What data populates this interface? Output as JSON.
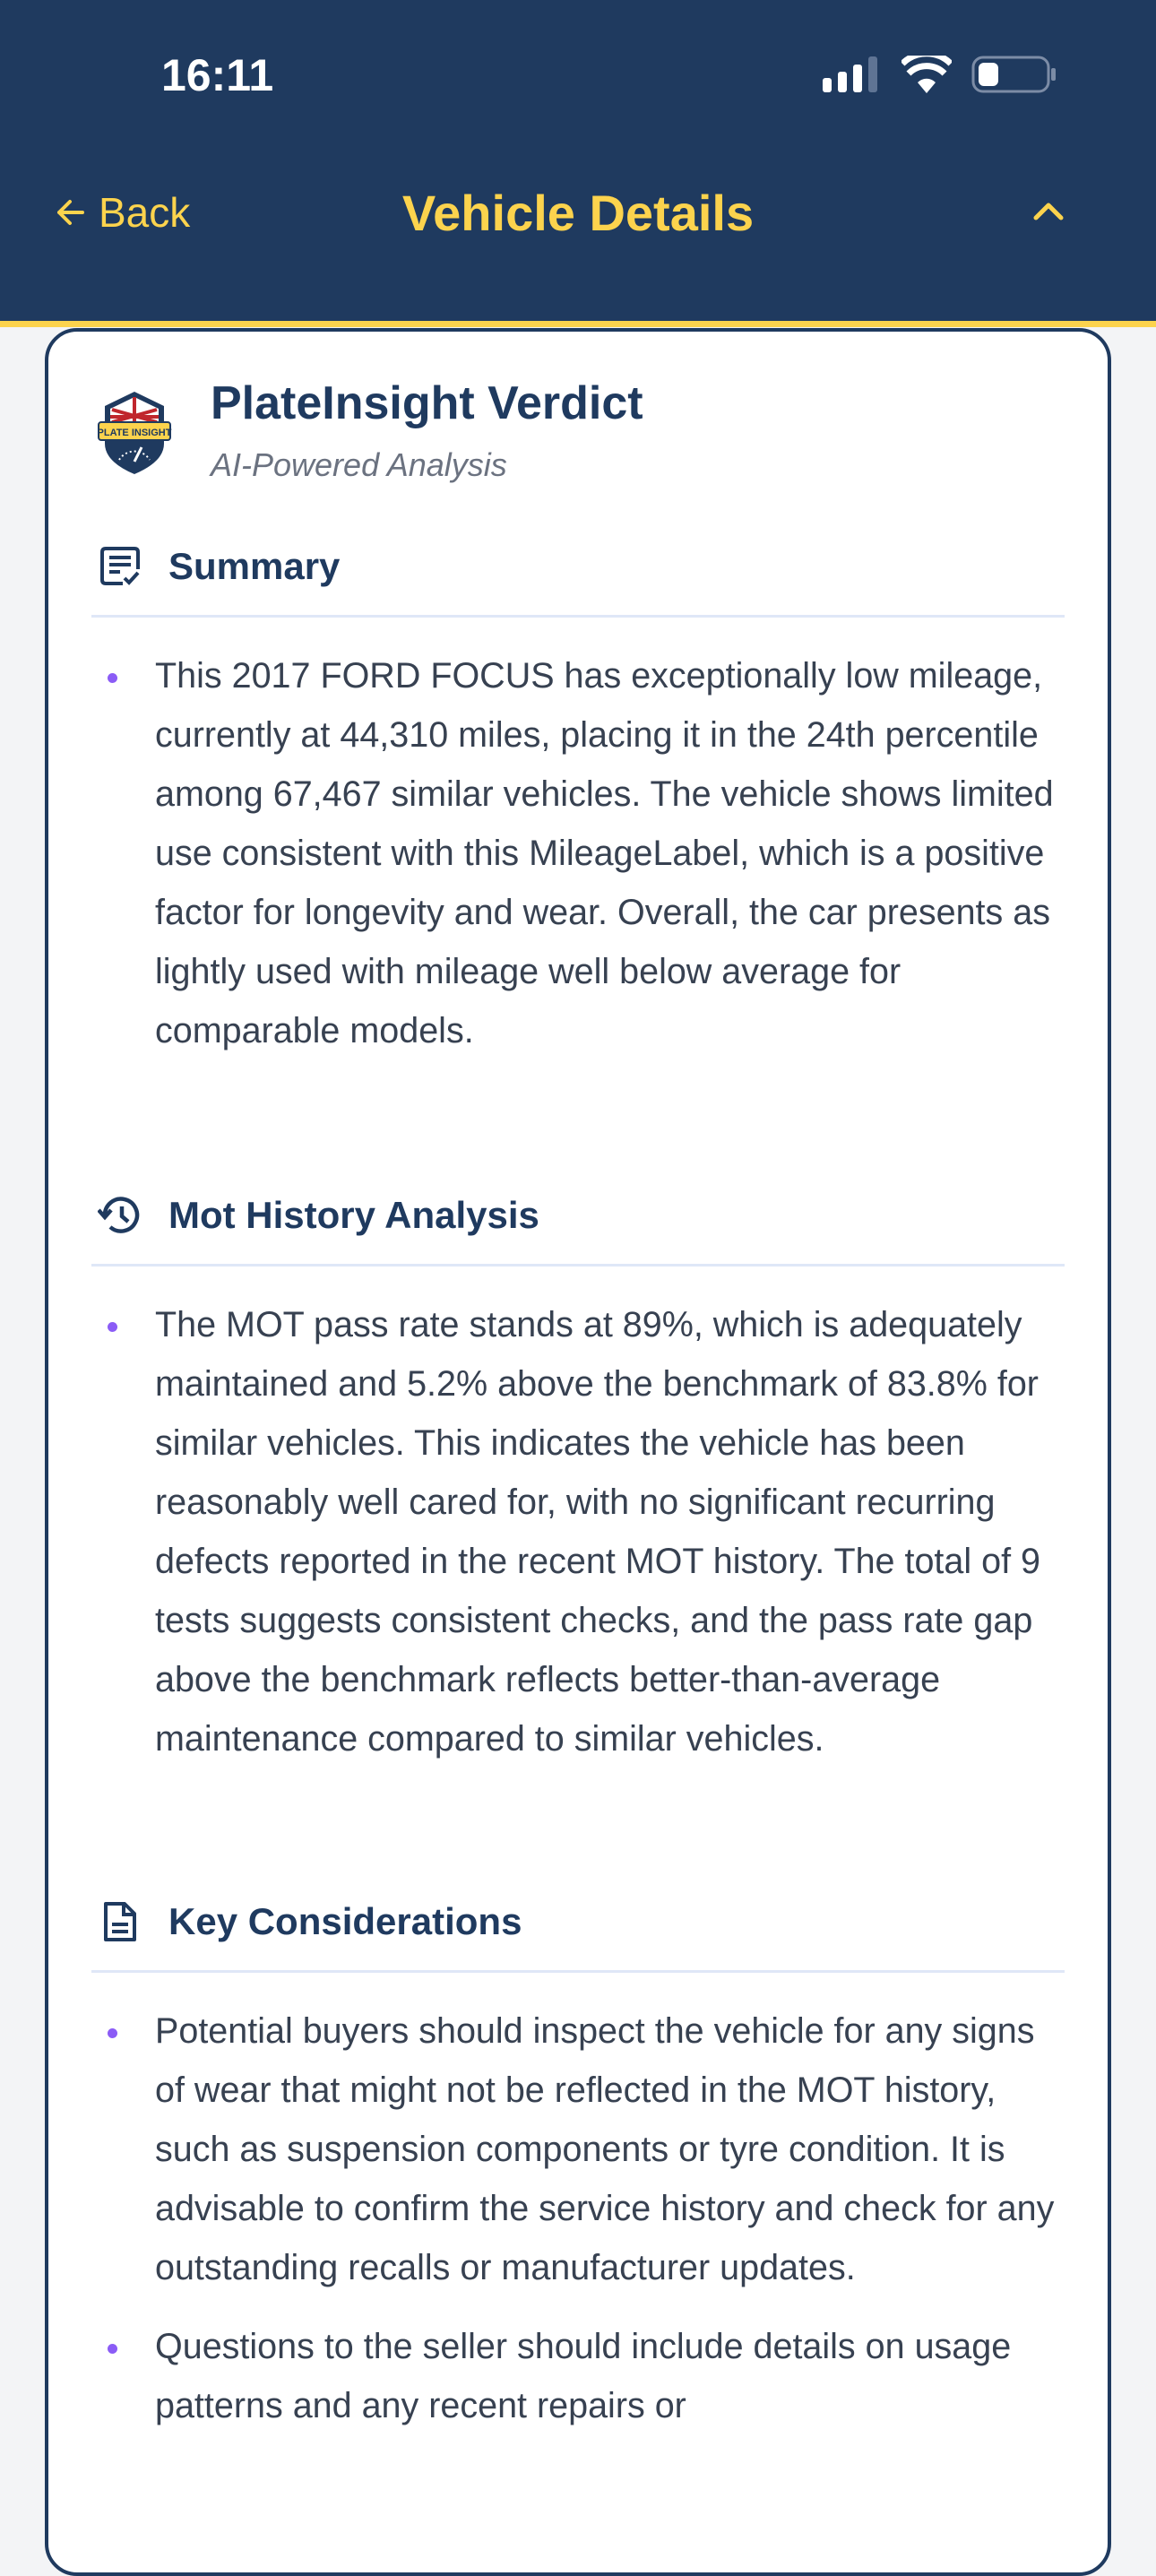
{
  "status_bar": {
    "time": "16:11",
    "battery_level": 0.3
  },
  "nav": {
    "back_label": "Back",
    "title": "Vehicle Details"
  },
  "colors": {
    "header_bg": "#1F3A5F",
    "accent": "#FCD34D",
    "bullet": "#8B5CF6"
  },
  "verdict": {
    "logo_text": "PLATE INSIGHT",
    "title": "PlateInsight Verdict",
    "subtitle": "AI-Powered Analysis",
    "sections": [
      {
        "title": "Summary",
        "icon": "summary-checklist-icon",
        "bullets": [
          "This 2017 FORD FOCUS has exceptionally low mileage, currently at 44,310 miles, placing it in the 24th percentile among 67,467 similar vehicles. The vehicle shows limited use consistent with this MileageLabel, which is a positive factor for longevity and wear. Overall, the car presents as lightly used with mileage well below average for comparable models."
        ]
      },
      {
        "title": "Mot History Analysis",
        "icon": "history-icon",
        "bullets": [
          "The MOT pass rate stands at 89%, which is adequately maintained and 5.2% above the benchmark of 83.8% for similar vehicles. This indicates the vehicle has been reasonably well cared for, with no significant recurring defects reported in the recent MOT history. The total of 9 tests suggests consistent checks, and the pass rate gap above the benchmark reflects better-than-average maintenance compared to similar vehicles."
        ]
      },
      {
        "title": "Key Considerations",
        "icon": "document-icon",
        "bullets": [
          "Potential buyers should inspect the vehicle for any signs of wear that might not be reflected in the MOT history, such as suspension components or tyre condition. It is advisable to confirm the service history and check for any outstanding recalls or manufacturer updates.",
          "Questions to the seller should include details on usage patterns and any recent repairs or"
        ]
      }
    ]
  }
}
